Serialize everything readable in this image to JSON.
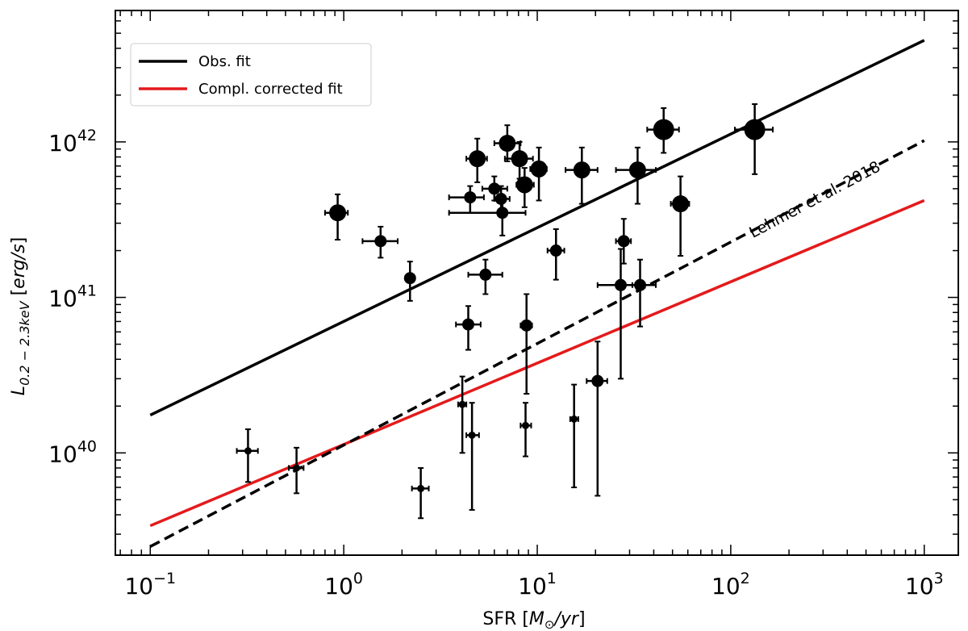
{
  "chart_data": {
    "type": "scatter",
    "xlabel": "SFR",
    "xlabel_unit": "M",
    "xlabel_unit_sub": "⊙",
    "xlabel_unit_rest": "/yr",
    "ylabel": "L",
    "ylabel_sub": "0.2 − 2.3keV",
    "ylabel_unit": "erg/s",
    "xscale": "log",
    "yscale": "log",
    "xlim": [
      0.066,
      1500
    ],
    "ylim": [
      2.2e+39,
      7e+42
    ],
    "x_ticks": [
      {
        "value": 0.1,
        "base": "10",
        "exp": "−1"
      },
      {
        "value": 1,
        "base": "10",
        "exp": "0"
      },
      {
        "value": 10,
        "base": "10",
        "exp": "1"
      },
      {
        "value": 100,
        "base": "10",
        "exp": "2"
      },
      {
        "value": 1000,
        "base": "10",
        "exp": "3"
      }
    ],
    "y_ticks": [
      {
        "value": 1e+40,
        "base": "10",
        "exp": "40"
      },
      {
        "value": 1e+41,
        "base": "10",
        "exp": "41"
      },
      {
        "value": 1e+42,
        "base": "10",
        "exp": "42"
      }
    ],
    "legend_position": "top-left",
    "grid": false,
    "lines": [
      {
        "name": "Obs. fit",
        "color": "#000000",
        "style": "solid",
        "x": [
          0.1,
          1000
        ],
        "y": [
          1.75e+40,
          4.5e+42
        ]
      },
      {
        "name": "Compl. corrected fit",
        "color": "#e41a1c",
        "style": "solid",
        "x": [
          0.1,
          1000
        ],
        "y": [
          3.4e+39,
          4.2e+41
        ]
      },
      {
        "name": "",
        "color": "#000000",
        "style": "dashed",
        "x": [
          0.1,
          1000
        ],
        "y": [
          2.5e+39,
          1.02e+42
        ]
      }
    ],
    "annotation": {
      "text": "Lehmer et al. 2018",
      "x": 130,
      "y": 2.4e+41,
      "rotation_deg": -28
    },
    "points": [
      {
        "x": 0.93,
        "y": 3.5e+41,
        "xlo": 0.8,
        "xhi": 1.05,
        "ylo": 2.35e+41,
        "yhi": 4.6e+41,
        "size": "large"
      },
      {
        "x": 1.55,
        "y": 2.3e+41,
        "xlo": 1.25,
        "xhi": 1.9,
        "ylo": 1.8e+41,
        "yhi": 2.85e+41,
        "size": "medium"
      },
      {
        "x": 2.2,
        "y": 1.33e+41,
        "xlo": 2.1,
        "xhi": 2.3,
        "ylo": 9.5e+40,
        "yhi": 1.7e+41,
        "size": "medium"
      },
      {
        "x": 4.9,
        "y": 7.8e+41,
        "xlo": 4.3,
        "xhi": 5.5,
        "ylo": 5.5e+41,
        "yhi": 1.05e+42,
        "size": "large"
      },
      {
        "x": 4.5,
        "y": 4.4e+41,
        "xlo": 3.5,
        "xhi": 5.3,
        "ylo": 3.5e+41,
        "yhi": 5.2e+41,
        "size": "medium"
      },
      {
        "x": 6.0,
        "y": 5e+41,
        "xlo": 5.2,
        "xhi": 7.0,
        "ylo": 4.2e+41,
        "yhi": 6e+41,
        "size": "medium"
      },
      {
        "x": 6.5,
        "y": 4.3e+41,
        "xlo": 6.0,
        "xhi": 7.2,
        "ylo": 3.6e+41,
        "yhi": 5.2e+41,
        "size": "medium"
      },
      {
        "x": 6.6,
        "y": 3.5e+41,
        "xlo": 3.5,
        "xhi": 8.7,
        "ylo": 2.5e+41,
        "yhi": 4.5e+41,
        "size": "medium"
      },
      {
        "x": 7.0,
        "y": 9.8e+41,
        "xlo": 6.0,
        "xhi": 8.2,
        "ylo": 7.5e+41,
        "yhi": 1.28e+42,
        "size": "large"
      },
      {
        "x": 8.1,
        "y": 7.8e+41,
        "xlo": 6.8,
        "xhi": 9.5,
        "ylo": 5.8e+41,
        "yhi": 1e+42,
        "size": "large"
      },
      {
        "x": 8.6,
        "y": 5.3e+41,
        "xlo": 7.8,
        "xhi": 9.6,
        "ylo": 3.8e+41,
        "yhi": 6.8e+41,
        "size": "large"
      },
      {
        "x": 10.2,
        "y": 6.7e+41,
        "xlo": 9.2,
        "xhi": 11.2,
        "ylo": 4.2e+41,
        "yhi": 9.2e+41,
        "size": "large"
      },
      {
        "x": 17.0,
        "y": 6.6e+41,
        "xlo": 14.0,
        "xhi": 20.5,
        "ylo": 4e+41,
        "yhi": 9.2e+41,
        "size": "large"
      },
      {
        "x": 33.0,
        "y": 6.6e+41,
        "xlo": 25.5,
        "xhi": 41.0,
        "ylo": 4e+41,
        "yhi": 9.2e+41,
        "size": "large"
      },
      {
        "x": 45.0,
        "y": 1.2e+42,
        "xlo": 37.0,
        "xhi": 54.0,
        "ylo": 8.5e+41,
        "yhi": 1.65e+42,
        "size": "xlarge"
      },
      {
        "x": 55.0,
        "y": 4e+41,
        "xlo": 49.0,
        "xhi": 61.0,
        "ylo": 1.85e+41,
        "yhi": 6e+41,
        "size": "large"
      },
      {
        "x": 133.0,
        "y": 1.2e+42,
        "xlo": 105.0,
        "xhi": 165.0,
        "ylo": 6.2e+41,
        "yhi": 1.75e+42,
        "size": "xlarge"
      },
      {
        "x": 12.5,
        "y": 2e+41,
        "xlo": 11.3,
        "xhi": 13.8,
        "ylo": 1.3e+41,
        "yhi": 2.75e+41,
        "size": "medium"
      },
      {
        "x": 5.4,
        "y": 1.4e+41,
        "xlo": 4.4,
        "xhi": 6.6,
        "ylo": 1.05e+41,
        "yhi": 1.75e+41,
        "size": "medium"
      },
      {
        "x": 28.0,
        "y": 2.3e+41,
        "xlo": 25.5,
        "xhi": 30.5,
        "ylo": 1.65e+41,
        "yhi": 3.2e+41,
        "size": "medium"
      },
      {
        "x": 27.0,
        "y": 1.2e+41,
        "xlo": 20.5,
        "xhi": 34.0,
        "ylo": 3e+40,
        "yhi": 2.05e+41,
        "size": "medium"
      },
      {
        "x": 34.0,
        "y": 1.2e+41,
        "xlo": 31.0,
        "xhi": 41.0,
        "ylo": 6.5e+40,
        "yhi": 1.75e+41,
        "size": "medium"
      },
      {
        "x": 4.4,
        "y": 6.7e+40,
        "xlo": 3.8,
        "xhi": 5.1,
        "ylo": 4.6e+40,
        "yhi": 8.8e+40,
        "size": "medium"
      },
      {
        "x": 8.8,
        "y": 6.6e+40,
        "xlo": 8.2,
        "xhi": 9.4,
        "ylo": 2.4e+40,
        "yhi": 1.05e+41,
        "size": "medium"
      },
      {
        "x": 20.5,
        "y": 2.9e+40,
        "xlo": 18.0,
        "xhi": 23.0,
        "ylo": 5.3e+39,
        "yhi": 5.2e+40,
        "size": "medium"
      },
      {
        "x": 4.1,
        "y": 2.05e+40,
        "xlo": 3.9,
        "xhi": 4.3,
        "ylo": 1e+40,
        "yhi": 3.1e+40,
        "size": "small"
      },
      {
        "x": 4.6,
        "y": 1.3e+40,
        "xlo": 4.3,
        "xhi": 5.0,
        "ylo": 4.3e+39,
        "yhi": 2.1e+40,
        "size": "small"
      },
      {
        "x": 8.7,
        "y": 1.5e+40,
        "xlo": 8.2,
        "xhi": 9.3,
        "ylo": 9.5e+39,
        "yhi": 2.1e+40,
        "size": "small"
      },
      {
        "x": 15.5,
        "y": 1.65e+40,
        "xlo": 14.8,
        "xhi": 16.3,
        "ylo": 6e+39,
        "yhi": 2.75e+40,
        "size": "small"
      },
      {
        "x": 0.32,
        "y": 1.03e+40,
        "xlo": 0.28,
        "xhi": 0.36,
        "ylo": 6.5e+39,
        "yhi": 1.42e+40,
        "size": "small"
      },
      {
        "x": 0.57,
        "y": 8e+39,
        "xlo": 0.52,
        "xhi": 0.62,
        "ylo": 5.5e+39,
        "yhi": 1.08e+40,
        "size": "small"
      },
      {
        "x": 2.5,
        "y": 5.9e+39,
        "xlo": 2.25,
        "xhi": 2.75,
        "ylo": 3.8e+39,
        "yhi": 8e+39,
        "size": "small"
      }
    ]
  }
}
